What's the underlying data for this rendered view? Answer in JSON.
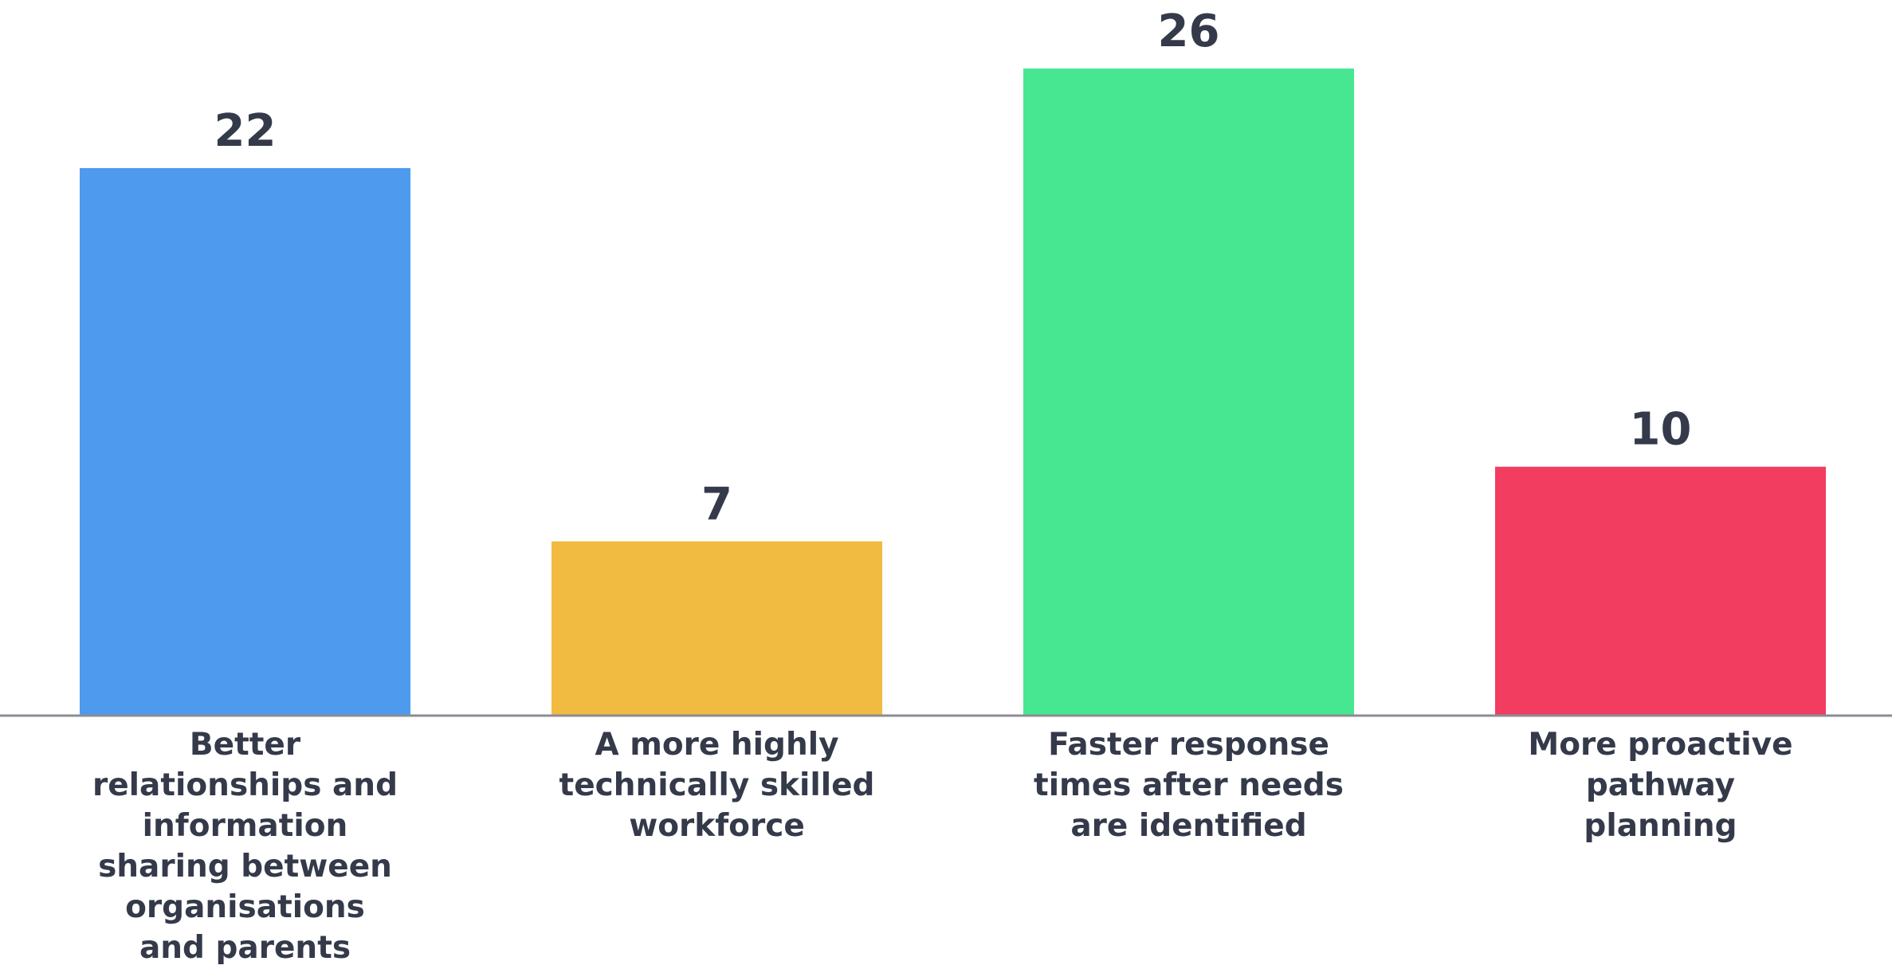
{
  "chart_data": {
    "type": "bar",
    "categories": [
      [
        "Better",
        "relationships and",
        "information",
        "sharing between",
        "organisations",
        "and parents"
      ],
      [
        "A more highly",
        "technically skilled",
        "workforce"
      ],
      [
        "Faster response",
        "times after needs",
        "are identified"
      ],
      [
        "More proactive",
        "pathway",
        "planning"
      ]
    ],
    "values": [
      22,
      7,
      26,
      10
    ],
    "colors": [
      "#4d9aee",
      "#f0bb40",
      "#47e691",
      "#f23d60"
    ],
    "title": "",
    "xlabel": "",
    "ylabel": "",
    "ylim": [
      0,
      26
    ],
    "grid": false,
    "legend": "none"
  }
}
